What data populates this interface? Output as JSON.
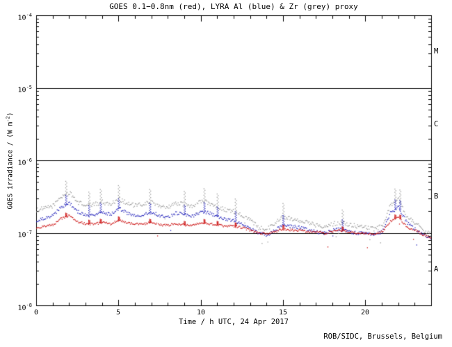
{
  "credit": "ROB/SIDC, Brussels, Belgium",
  "chart_data": {
    "type": "scatter",
    "title": "GOES 0.1−0.8nm (red), LYRA Al (blue) & Zr (grey) proxy",
    "xlabel": "Time / h UTC, 24 Apr 2017",
    "ylabel": {
      "pre": "GOES irradiance / (W m",
      "sup": "-2",
      "post": ")"
    },
    "xlim": [
      0,
      24
    ],
    "ylim": [
      1e-08,
      0.0001
    ],
    "ylim_log10": [
      -8,
      -4
    ],
    "grid": false,
    "legend_position": "none (colors named in title)",
    "xticks": {
      "major": [
        0,
        5,
        10,
        15,
        20
      ],
      "labels": [
        "0",
        "5",
        "10",
        "15",
        "20"
      ],
      "minor_step": 1
    },
    "yticks": [
      {
        "base": "10",
        "exp": "-4",
        "value": 0.0001
      },
      {
        "base": "10",
        "exp": "-5",
        "value": 1e-05
      },
      {
        "base": "10",
        "exp": "-6",
        "value": 1e-06
      },
      {
        "base": "10",
        "exp": "-7",
        "value": 1e-07
      },
      {
        "base": "10",
        "exp": "-8",
        "value": 1e-08
      }
    ],
    "class_lines": [
      1e-05,
      1e-06,
      1e-07
    ],
    "flare_classes": [
      "M",
      "C",
      "B",
      "A"
    ],
    "x": [
      0,
      0.5,
      1,
      1.5,
      2,
      2.5,
      3,
      3.5,
      4,
      4.5,
      5,
      5.5,
      6,
      6.5,
      7,
      7.5,
      8,
      8.5,
      9,
      9.5,
      10,
      10.5,
      11,
      11.5,
      12,
      12.5,
      13,
      13.5,
      14,
      14.5,
      15,
      15.5,
      16,
      16.5,
      17,
      17.5,
      18,
      18.5,
      19,
      19.5,
      20,
      20.5,
      21,
      21.5,
      22,
      22.5,
      23,
      23.5,
      24
    ],
    "spike_hours": [
      1.8,
      3.2,
      3.9,
      5.0,
      6.9,
      9.0,
      10.2,
      11.0,
      12.1,
      15.0,
      18.6,
      21.8,
      22.1
    ],
    "series": [
      {
        "name": "LYRA Zr proxy",
        "color": "#9a9a9a",
        "spike_amp": 0.18,
        "values": [
          2.1e-07,
          2.2e-07,
          2.4e-07,
          3.2e-07,
          3.6e-07,
          2.7e-07,
          2.4e-07,
          2.5e-07,
          2.7e-07,
          2.5e-07,
          3e-07,
          2.6e-07,
          2.4e-07,
          2.5e-07,
          2.7e-07,
          2.4e-07,
          2.3e-07,
          2.6e-07,
          2.5e-07,
          2.3e-07,
          2.8e-07,
          2.6e-07,
          2.3e-07,
          2.1e-07,
          2e-07,
          1.8e-07,
          1.5e-07,
          1.2e-07,
          1.15e-07,
          1.4e-07,
          1.7e-07,
          1.6e-07,
          1.5e-07,
          1.4e-07,
          1.3e-07,
          1.25e-07,
          1.35e-07,
          1.4e-07,
          1.3e-07,
          1.25e-07,
          1.2e-07,
          1.15e-07,
          1.25e-07,
          2.4e-07,
          2.9e-07,
          1.7e-07,
          1.4e-07,
          1.1e-07,
          9.5e-08
        ],
        "jitter": 0.06
      },
      {
        "name": "LYRA Al proxy",
        "color": "#2222bb",
        "spike_amp": 0.13,
        "values": [
          1.5e-07,
          1.6e-07,
          1.75e-07,
          2.3e-07,
          2.6e-07,
          2e-07,
          1.75e-07,
          1.8e-07,
          1.95e-07,
          1.8e-07,
          2.2e-07,
          1.9e-07,
          1.75e-07,
          1.8e-07,
          1.95e-07,
          1.75e-07,
          1.7e-07,
          1.9e-07,
          1.8e-07,
          1.7e-07,
          2e-07,
          1.9e-07,
          1.7e-07,
          1.55e-07,
          1.5e-07,
          1.35e-07,
          1.15e-07,
          1e-07,
          9.5e-08,
          1.1e-07,
          1.3e-07,
          1.25e-07,
          1.2e-07,
          1.1e-07,
          1.05e-07,
          1e-07,
          1.1e-07,
          1.15e-07,
          1.05e-07,
          1e-07,
          1e-07,
          9.5e-08,
          1.05e-07,
          1.9e-07,
          2.3e-07,
          1.4e-07,
          1.15e-07,
          9.5e-08,
          8.5e-08
        ],
        "jitter": 0.045
      },
      {
        "name": "GOES 0.1-0.8nm",
        "color": "#cc1111",
        "spike_amp": 0.05,
        "values": [
          1.2e-07,
          1.25e-07,
          1.3e-07,
          1.6e-07,
          1.75e-07,
          1.45e-07,
          1.35e-07,
          1.35e-07,
          1.4e-07,
          1.35e-07,
          1.5e-07,
          1.4e-07,
          1.35e-07,
          1.35e-07,
          1.4e-07,
          1.3e-07,
          1.3e-07,
          1.35e-07,
          1.3e-07,
          1.3e-07,
          1.4e-07,
          1.35e-07,
          1.3e-07,
          1.25e-07,
          1.25e-07,
          1.2e-07,
          1.1e-07,
          1e-07,
          9.8e-08,
          1.05e-07,
          1.15e-07,
          1.1e-07,
          1.1e-07,
          1.05e-07,
          1.05e-07,
          1e-07,
          1.05e-07,
          1.1e-07,
          1.05e-07,
          1e-07,
          1e-07,
          9.8e-08,
          1.05e-07,
          1.45e-07,
          1.7e-07,
          1.2e-07,
          1.1e-07,
          9.5e-08,
          8.8e-08
        ],
        "jitter": 0.03
      }
    ]
  }
}
